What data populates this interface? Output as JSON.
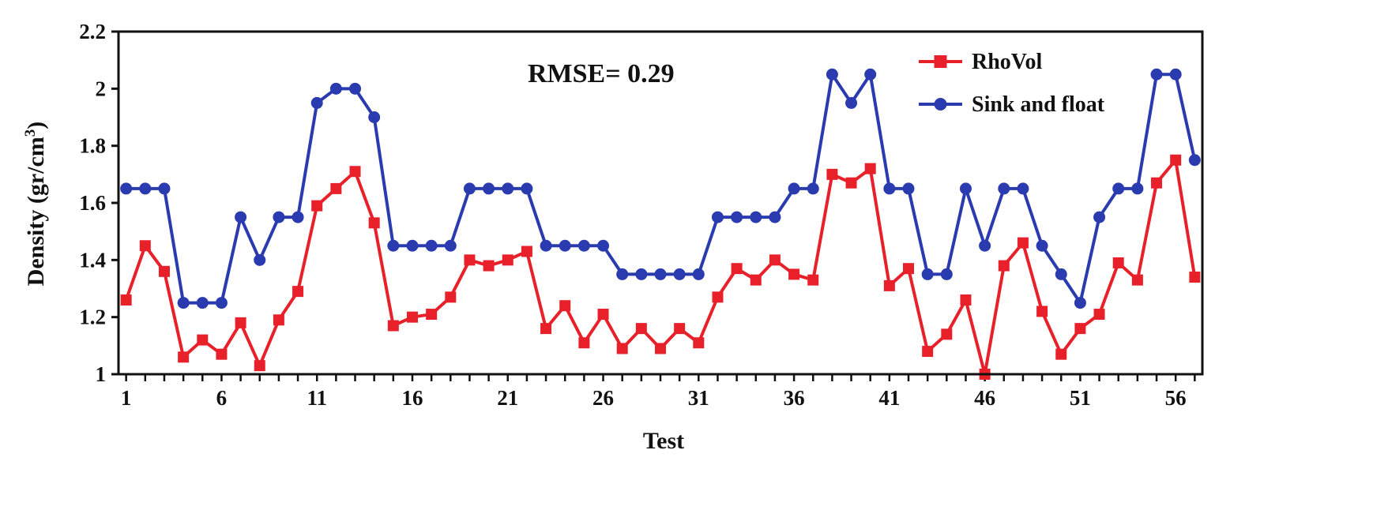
{
  "chart_data": {
    "type": "line",
    "title": "",
    "xlabel": "Test",
    "ylabel": {
      "text": "Density (gr/cm",
      "superscript": "3",
      "suffix": ")"
    },
    "ylim": [
      1,
      2.2
    ],
    "y_ticks": [
      "1",
      "1.2",
      "1.4",
      "1.6",
      "1.8",
      "2",
      "2.2"
    ],
    "xlim": [
      0.6,
      57.4
    ],
    "x_ticks": [
      "1",
      "6",
      "11",
      "16",
      "21",
      "26",
      "31",
      "36",
      "41",
      "46",
      "51",
      "56"
    ],
    "annotation": "RMSE= 0.29",
    "legend_position": "top-right",
    "grid": false,
    "x": [
      1,
      2,
      3,
      4,
      5,
      6,
      7,
      8,
      9,
      10,
      11,
      12,
      13,
      14,
      15,
      16,
      17,
      18,
      19,
      20,
      21,
      22,
      23,
      24,
      25,
      26,
      27,
      28,
      29,
      30,
      31,
      32,
      33,
      34,
      35,
      36,
      37,
      38,
      39,
      40,
      41,
      42,
      43,
      44,
      45,
      46,
      47,
      48,
      49,
      50,
      51,
      52,
      53,
      54,
      55,
      56,
      57
    ],
    "series": [
      {
        "name": "RhoVol",
        "color": "#e8202a",
        "marker": "square",
        "values": [
          1.26,
          1.45,
          1.36,
          1.06,
          1.12,
          1.07,
          1.18,
          1.03,
          1.19,
          1.29,
          1.59,
          1.65,
          1.71,
          1.53,
          1.17,
          1.2,
          1.21,
          1.27,
          1.4,
          1.38,
          1.4,
          1.43,
          1.16,
          1.24,
          1.11,
          1.21,
          1.09,
          1.16,
          1.09,
          1.16,
          1.11,
          1.27,
          1.37,
          1.33,
          1.4,
          1.35,
          1.33,
          1.7,
          1.67,
          1.72,
          1.31,
          1.37,
          1.08,
          1.14,
          1.26,
          1.0,
          1.38,
          1.46,
          1.22,
          1.07,
          1.16,
          1.21,
          1.39,
          1.33,
          1.67,
          1.75,
          1.34
        ]
      },
      {
        "name": "Sink and float",
        "color": "#2a3bb0",
        "marker": "circle",
        "values": [
          1.65,
          1.65,
          1.65,
          1.25,
          1.25,
          1.25,
          1.55,
          1.4,
          1.55,
          1.55,
          1.95,
          2.0,
          2.0,
          1.9,
          1.45,
          1.45,
          1.45,
          1.45,
          1.65,
          1.65,
          1.65,
          1.65,
          1.45,
          1.45,
          1.45,
          1.45,
          1.35,
          1.35,
          1.35,
          1.35,
          1.35,
          1.55,
          1.55,
          1.55,
          1.55,
          1.65,
          1.65,
          2.05,
          1.95,
          2.05,
          1.65,
          1.65,
          1.35,
          1.35,
          1.65,
          1.45,
          1.65,
          1.65,
          1.45,
          1.35,
          1.25,
          1.55,
          1.65,
          1.65,
          2.05,
          2.05,
          1.75
        ]
      }
    ]
  }
}
